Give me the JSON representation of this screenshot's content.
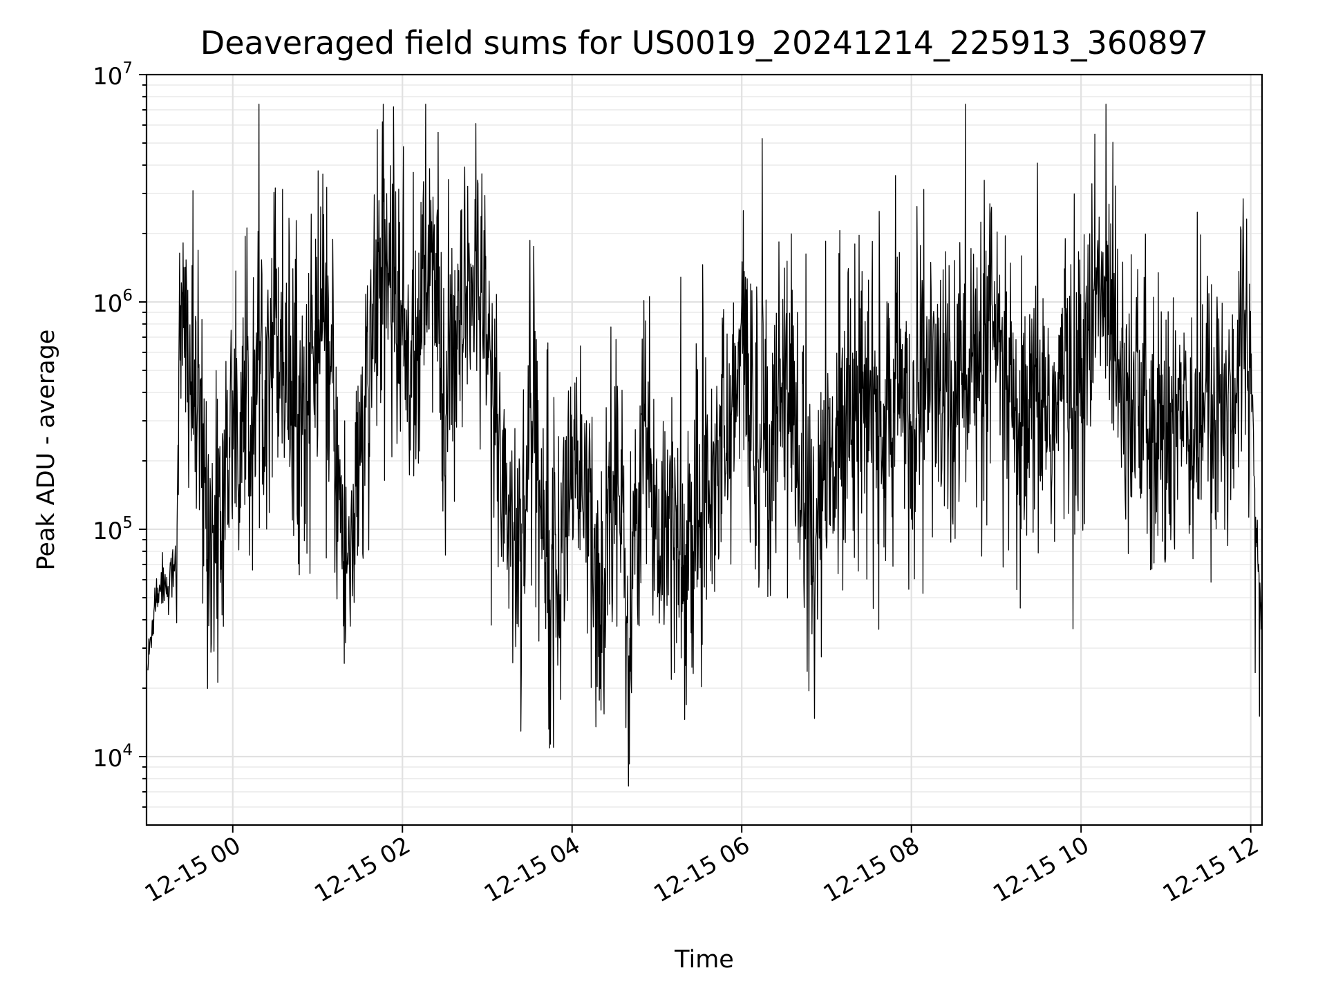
{
  "chart_data": {
    "type": "line",
    "title": "Deaveraged field sums for US0019_20241214_225913_360897",
    "xlabel": "Time",
    "ylabel": "Peak ADU - average",
    "yscale": "log",
    "xlim": [
      "2024-12-14T22:59",
      "2024-12-15T12:08"
    ],
    "ylim": [
      5000,
      10000000
    ],
    "x_ticks": [
      "12-15 00",
      "12-15 02",
      "12-15 04",
      "12-15 06",
      "12-15 08",
      "12-15 10",
      "12-15 12"
    ],
    "y_ticks": [
      {
        "base": "10",
        "exp": "4",
        "value": 10000
      },
      {
        "base": "10",
        "exp": "5",
        "value": 100000
      },
      {
        "base": "10",
        "exp": "6",
        "value": 1000000
      },
      {
        "base": "10",
        "exp": "7",
        "value": 10000000
      }
    ],
    "grid": true,
    "series": [
      {
        "color": "#000000",
        "x": [
          "2024-12-14T23:00",
          "2024-12-14T23:05",
          "2024-12-14T23:10",
          "2024-12-14T23:15",
          "2024-12-14T23:20",
          "2024-12-14T23:22",
          "2024-12-14T23:25",
          "2024-12-14T23:28",
          "2024-12-14T23:30",
          "2024-12-14T23:35",
          "2024-12-14T23:40",
          "2024-12-14T23:45",
          "2024-12-14T23:50",
          "2024-12-14T23:55",
          "2024-12-15T00:00",
          "2024-12-15T00:10",
          "2024-12-15T00:20",
          "2024-12-15T00:30",
          "2024-12-15T00:40",
          "2024-12-15T00:50",
          "2024-12-15T01:00",
          "2024-12-15T01:10",
          "2024-12-15T01:20",
          "2024-12-15T01:30",
          "2024-12-15T01:40",
          "2024-12-15T01:50",
          "2024-12-15T02:00",
          "2024-12-15T02:10",
          "2024-12-15T02:20",
          "2024-12-15T02:30",
          "2024-12-15T02:40",
          "2024-12-15T02:50",
          "2024-12-15T03:00",
          "2024-12-15T03:10",
          "2024-12-15T03:20",
          "2024-12-15T03:30",
          "2024-12-15T03:40",
          "2024-12-15T03:50",
          "2024-12-15T04:00",
          "2024-12-15T04:10",
          "2024-12-15T04:20",
          "2024-12-15T04:30",
          "2024-12-15T04:40",
          "2024-12-15T04:50",
          "2024-12-15T05:00",
          "2024-12-15T05:10",
          "2024-12-15T05:20",
          "2024-12-15T05:30",
          "2024-12-15T05:40",
          "2024-12-15T05:50",
          "2024-12-15T06:00",
          "2024-12-15T06:10",
          "2024-12-15T06:20",
          "2024-12-15T06:30",
          "2024-12-15T06:40",
          "2024-12-15T06:50",
          "2024-12-15T07:00",
          "2024-12-15T07:10",
          "2024-12-15T07:20",
          "2024-12-15T07:30",
          "2024-12-15T07:40",
          "2024-12-15T07:50",
          "2024-12-15T08:00",
          "2024-12-15T08:10",
          "2024-12-15T08:20",
          "2024-12-15T08:30",
          "2024-12-15T08:40",
          "2024-12-15T08:50",
          "2024-12-15T09:00",
          "2024-12-15T09:10",
          "2024-12-15T09:20",
          "2024-12-15T09:30",
          "2024-12-15T09:40",
          "2024-12-15T09:50",
          "2024-12-15T10:00",
          "2024-12-15T10:10",
          "2024-12-15T10:20",
          "2024-12-15T10:30",
          "2024-12-15T10:40",
          "2024-12-15T10:50",
          "2024-12-15T11:00",
          "2024-12-15T11:10",
          "2024-12-15T11:20",
          "2024-12-15T11:30",
          "2024-12-15T11:40",
          "2024-12-15T11:50",
          "2024-12-15T11:55",
          "2024-12-15T12:00",
          "2024-12-15T12:04",
          "2024-12-15T12:08"
        ],
        "values": [
          25000,
          50000,
          60000,
          55000,
          80000,
          500000,
          700000,
          650000,
          500000,
          300000,
          150000,
          100000,
          60000,
          200000,
          350000,
          250000,
          500000,
          900000,
          500000,
          300000,
          800000,
          400000,
          60000,
          200000,
          700000,
          1500000,
          800000,
          500000,
          2000000,
          300000,
          600000,
          1500000,
          600000,
          200000,
          80000,
          200000,
          150000,
          60000,
          200000,
          120000,
          40000,
          300000,
          30000,
          400000,
          80000,
          150000,
          70000,
          100000,
          300000,
          200000,
          600000,
          300000,
          250000,
          600000,
          200000,
          100000,
          150000,
          300000,
          500000,
          350000,
          250000,
          400000,
          300000,
          500000,
          400000,
          350000,
          600000,
          400000,
          700000,
          300000,
          200000,
          400000,
          300000,
          500000,
          400000,
          900000,
          1200000,
          500000,
          400000,
          200000,
          250000,
          400000,
          300000,
          350000,
          300000,
          500000,
          1000000,
          600000,
          100000,
          40000
        ]
      }
    ]
  }
}
